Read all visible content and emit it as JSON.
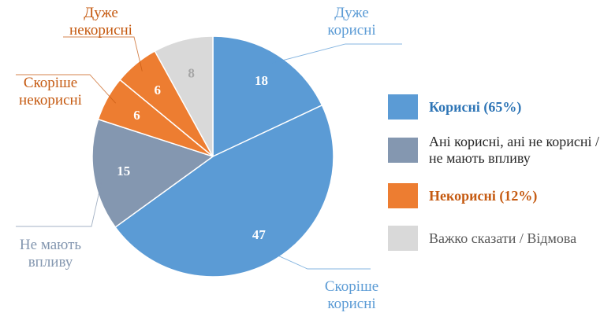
{
  "chart_data": {
    "type": "pie",
    "title": "",
    "categories": [
      "Дуже корисні",
      "Скоріше корисні",
      "Не мають впливу",
      "Скоріше некорисні",
      "Дуже некорисні",
      ""
    ],
    "values": [
      18,
      47,
      15,
      6,
      6,
      8
    ],
    "colors": [
      "#5b9bd5",
      "#5b9bd5",
      "#8497b0",
      "#ed7d31",
      "#ed7d31",
      "#d9d9d9"
    ],
    "value_label_colors": [
      "#ffffff",
      "#ffffff",
      "#ffffff",
      "#ffffff",
      "#ffffff",
      "#a6a6a6"
    ],
    "slice_labels": [
      {
        "lines": [
          "Дуже",
          "корисні"
        ],
        "color": "#5b9bd5"
      },
      {
        "lines": [
          "Скоріше",
          "корисні"
        ],
        "color": "#5b9bd5"
      },
      {
        "lines": [
          "Не мають",
          "впливу"
        ],
        "color": "#8497b0"
      },
      {
        "lines": [
          "Скоріше",
          "некорисні"
        ],
        "color": "#c55a11"
      },
      {
        "lines": [
          "Дуже",
          "некорисні"
        ],
        "color": "#c55a11"
      }
    ],
    "legend": [
      {
        "text": "Корисні (65%)",
        "color": "#5b9bd5",
        "text_color": "#2e75b6",
        "bold": true
      },
      {
        "text": "Ані корисні, ані не корисні / не мають впливу",
        "color": "#8497b0",
        "text_color": "#262626",
        "bold": false
      },
      {
        "text": "Некорисні (12%)",
        "color": "#ed7d31",
        "text_color": "#c55a11",
        "bold": true
      },
      {
        "text": "Важко сказати / Відмова",
        "color": "#d9d9d9",
        "text_color": "#595959",
        "bold": false
      }
    ],
    "legend_position": "right"
  }
}
